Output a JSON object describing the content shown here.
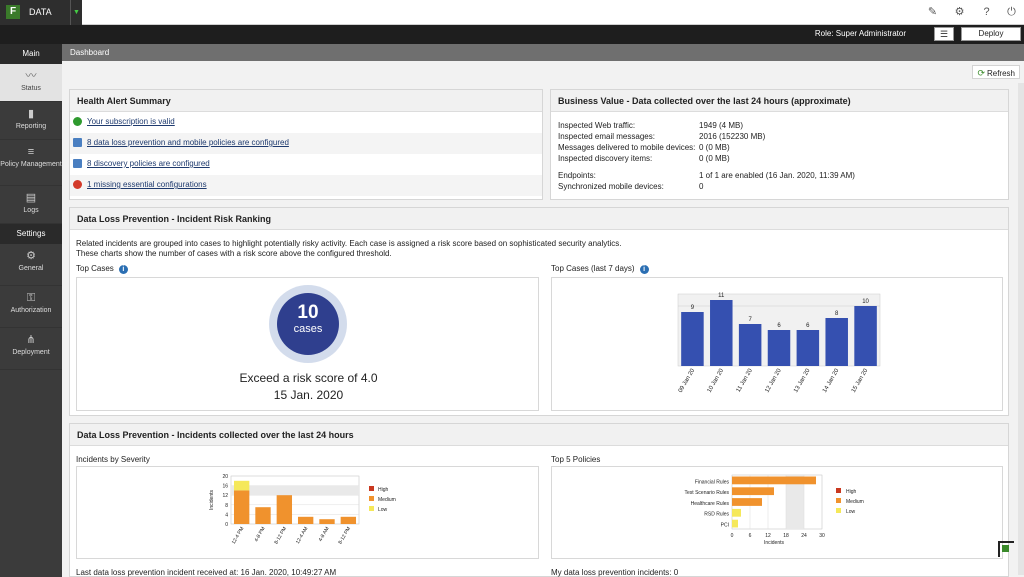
{
  "app": {
    "logo": "F",
    "name": "DATA",
    "dropdown": "▼"
  },
  "top_icons": [
    "tools-icon",
    "gear-icon",
    "help-icon",
    "power-icon"
  ],
  "rolebar": {
    "role": "Role: Super Administrator",
    "deploy_label": "Deploy"
  },
  "sidebar": {
    "main_label": "Main",
    "main_items": [
      {
        "label": "Status",
        "icon": "pulse-icon"
      },
      {
        "label": "Reporting",
        "icon": "bar-chart-icon"
      },
      {
        "label": "Policy Management",
        "icon": "list-icon"
      },
      {
        "label": "Logs",
        "icon": "document-icon"
      }
    ],
    "settings_label": "Settings",
    "settings_items": [
      {
        "label": "General",
        "icon": "gear-icon"
      },
      {
        "label": "Authorization",
        "icon": "key-icon"
      },
      {
        "label": "Deployment",
        "icon": "network-icon"
      }
    ]
  },
  "breadcrumb": "Dashboard",
  "refresh_label": "Refresh",
  "health": {
    "title": "Health Alert Summary",
    "items": [
      {
        "text": "Your subscription is valid",
        "status": "ok",
        "color": "#2f9a2f"
      },
      {
        "text": "8 data loss prevention and mobile policies are configured",
        "status": "info",
        "color": "#4a7fc1"
      },
      {
        "text": "8 discovery policies are configured",
        "status": "info",
        "color": "#4a7fc1"
      },
      {
        "text": "1 missing essential configurations",
        "status": "error",
        "color": "#d33a2a"
      }
    ]
  },
  "business": {
    "title": "Business Value - Data collected over the last 24 hours (approximate)",
    "rows": [
      {
        "label": "Inspected Web traffic:",
        "value": "1949 (4 MB)"
      },
      {
        "label": "Inspected email messages:",
        "value": "2016 (152230 MB)"
      },
      {
        "label": "Messages delivered to mobile devices:",
        "value": "0 (0 MB)"
      },
      {
        "label": "Inspected discovery items:",
        "value": "0 (0 MB)"
      }
    ],
    "rows2": [
      {
        "label": "Endpoints:",
        "value": "1 of 1 are enabled (16 Jan. 2020, 11:39 AM)"
      },
      {
        "label": "Synchronized mobile devices:",
        "value": "0"
      }
    ]
  },
  "risk": {
    "title": "Data Loss Prevention - Incident Risk Ranking",
    "desc1": "Related incidents are grouped into cases to highlight potentially risky activity. Each case is assigned a risk score based on sophisticated security analytics.",
    "desc2": "These charts show the number of cases with a risk score above the configured threshold.",
    "top_cases_label": "Top Cases",
    "top_cases_7_label": "Top Cases (last 7 days)",
    "count": "10",
    "count_unit": "cases",
    "exceed_text": "Exceed a risk score of 4.0",
    "date_text": "15 Jan. 2020"
  },
  "incidents": {
    "title": "Data Loss Prevention - Incidents collected over the last 24 hours",
    "severity_label": "Incidents by Severity",
    "policies_label": "Top 5 Policies",
    "last_received": "Last data loss prevention incident received at: 16 Jan. 2020, 10:49:27 AM",
    "my_incidents": "My data loss prevention incidents: 0"
  },
  "chart_data": [
    {
      "type": "bar",
      "title": "Top Cases (last 7 days)",
      "categories": [
        "09 Jan 20",
        "10 Jan 20",
        "11 Jan 20",
        "12 Jan 20",
        "13 Jan 20",
        "14 Jan 20",
        "15 Jan 20"
      ],
      "values": [
        9,
        11,
        7,
        6,
        6,
        8,
        10
      ],
      "ylim": [
        0,
        12
      ],
      "color": "#3550b0"
    },
    {
      "type": "bar",
      "title": "Incidents by Severity",
      "ylabel": "Incidents",
      "categories": [
        "12-4 PM",
        "4-8 PM",
        "8-12 PM",
        "12-4 AM",
        "4-8 AM",
        "8-12 PM"
      ],
      "series": [
        {
          "name": "High",
          "values": [
            0,
            0,
            0,
            0,
            0,
            0
          ],
          "color": "#c9381f"
        },
        {
          "name": "Medium",
          "values": [
            14,
            7,
            12,
            3,
            2,
            3
          ],
          "color": "#f0922d"
        },
        {
          "name": "Low",
          "values": [
            4,
            0,
            0,
            0,
            0,
            0
          ],
          "color": "#f5e85a"
        }
      ],
      "yticks": [
        0,
        4,
        8,
        12,
        16,
        20
      ],
      "ylim": [
        0,
        20
      ],
      "legend": "right"
    },
    {
      "type": "bar",
      "orientation": "horizontal",
      "title": "Top 5 Policies",
      "xlabel": "Incidents",
      "categories": [
        "Financial Rules",
        "Test Scenario Rules",
        "Healthcare Rules",
        "RSD Rules",
        "PCI"
      ],
      "series": [
        {
          "name": "High",
          "values": [
            0,
            0,
            0,
            0,
            0
          ],
          "color": "#c9381f"
        },
        {
          "name": "Medium",
          "values": [
            28,
            14,
            10,
            0,
            0
          ],
          "color": "#f0922d"
        },
        {
          "name": "Low",
          "values": [
            0,
            0,
            0,
            3,
            2
          ],
          "color": "#f5e85a"
        }
      ],
      "xticks": [
        0,
        6,
        12,
        18,
        24,
        30
      ],
      "xlim": [
        0,
        30
      ],
      "legend": "right"
    }
  ]
}
